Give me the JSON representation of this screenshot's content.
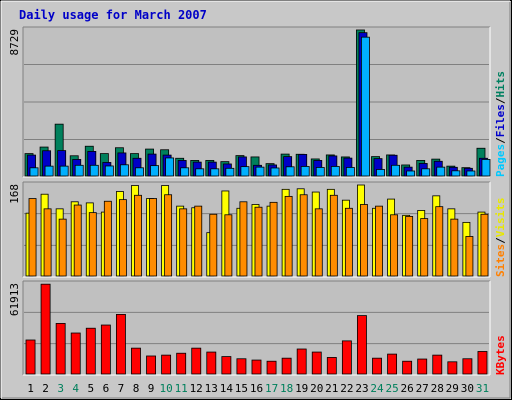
{
  "chart_data": {
    "title": "Daily usage for March 2007",
    "type": "bar",
    "categories": [
      "1",
      "2",
      "3",
      "4",
      "5",
      "6",
      "7",
      "8",
      "9",
      "10",
      "11",
      "12",
      "13",
      "14",
      "15",
      "16",
      "17",
      "18",
      "19",
      "20",
      "21",
      "22",
      "23",
      "24",
      "25",
      "26",
      "27",
      "28",
      "29",
      "30",
      "31"
    ],
    "weekend_days": [
      "3",
      "4",
      "10",
      "11",
      "17",
      "18",
      "24",
      "25",
      "31"
    ],
    "panels": [
      {
        "name": "pages-files-hits",
        "max_label": "8729",
        "ylim": [
          0,
          8729
        ],
        "legend": [
          {
            "label": "Pages",
            "color": "#00c8ff"
          },
          {
            "label": "/",
            "color": "#000000"
          },
          {
            "label": "Files",
            "color": "#0000cc"
          },
          {
            "label": "/",
            "color": "#000000"
          },
          {
            "label": "Hits",
            "color": "#008060"
          }
        ],
        "series": [
          {
            "name": "Hits",
            "color": "#00805c",
            "values": [
              1340,
              1730,
              3100,
              1210,
              1780,
              1340,
              1690,
              1340,
              1610,
              1570,
              1060,
              930,
              930,
              860,
              1220,
              1140,
              740,
              1310,
              1300,
              1020,
              1260,
              1140,
              8730,
              1160,
              1260,
              660,
              930,
              1010,
              590,
              500,
              1660
            ]
          },
          {
            "name": "Files",
            "color": "#0000c8",
            "values": [
              1250,
              1510,
              1520,
              990,
              1470,
              810,
              1380,
              1060,
              1310,
              1250,
              930,
              830,
              830,
              720,
              1140,
              640,
              660,
              1160,
              1290,
              930,
              1200,
              1070,
              8570,
              1040,
              1240,
              530,
              750,
              880,
              520,
              460,
              1060
            ]
          },
          {
            "name": "Pages",
            "color": "#00b0ff",
            "values": [
              490,
              590,
              590,
              640,
              640,
              600,
              670,
              490,
              620,
              1080,
              490,
              430,
              430,
              460,
              560,
              530,
              480,
              550,
              570,
              510,
              570,
              510,
              8300,
              390,
              640,
              300,
              430,
              530,
              310,
              300,
              990
            ]
          }
        ]
      },
      {
        "name": "sites-visits",
        "max_label": "168",
        "ylim": [
          0,
          168
        ],
        "legend": [
          {
            "label": "Sites",
            "color": "#ff8000"
          },
          {
            "label": "/",
            "color": "#000000"
          },
          {
            "label": "Visits",
            "color": "#e8e800"
          }
        ],
        "series": [
          {
            "name": "Visits",
            "color": "#ffff00",
            "values": [
              116,
              151,
              124,
              137,
              135,
              118,
              156,
              167,
              143,
              167,
              129,
              126,
              80,
              157,
              125,
              132,
              129,
              160,
              161,
              155,
              160,
              140,
              168,
              125,
              142,
              112,
              121,
              148,
              124,
              99,
              118
            ]
          },
          {
            "name": "Sites",
            "color": "#ff8c00",
            "values": [
              143,
              124,
              105,
              131,
              117,
              138,
              141,
              149,
              143,
              150,
              124,
              129,
              114,
              113,
              137,
              127,
              136,
              147,
              150,
              124,
              149,
              125,
              132,
              129,
              113,
              110,
              106,
              128,
              105,
              73,
              114
            ]
          }
        ]
      },
      {
        "name": "kbytes",
        "max_label": "61913",
        "ylim": [
          0,
          61913
        ],
        "legend": [
          {
            "label": "KBytes",
            "color": "#ff0000"
          }
        ],
        "series": [
          {
            "name": "KBytes",
            "color": "#ff0000",
            "values": [
              23390,
              61790,
              34790,
              28190,
              31490,
              33690,
              40990,
              17790,
              12390,
              12990,
              14290,
              17790,
              15090,
              11990,
              10490,
              9590,
              8790,
              10890,
              17190,
              15090,
              11390,
              22790,
              40190,
              10890,
              13690,
              8790,
              10290,
              12990,
              8390,
              10490,
              15490
            ]
          }
        ]
      }
    ]
  }
}
